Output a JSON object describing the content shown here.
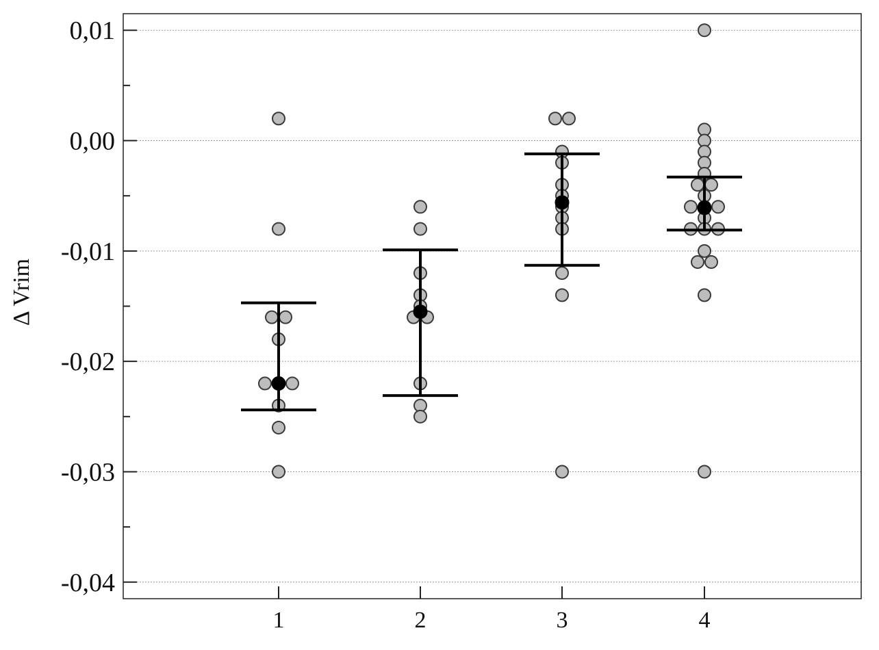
{
  "chart_data": {
    "type": "scatter",
    "title": "",
    "xlabel": "",
    "ylabel": "Δ Vrim",
    "ylim": [
      -0.0415,
      0.0115
    ],
    "grid": true,
    "y_ticks": [
      0.01,
      0.0,
      -0.01,
      -0.02,
      -0.03,
      -0.04
    ],
    "y_tick_labels": [
      "0,01",
      "0,00",
      "-0,01",
      "-0,02",
      "-0,03",
      "-0,04"
    ],
    "categories": [
      "1",
      "2",
      "3",
      "4"
    ],
    "colors": {
      "point_fill": "#bdbdbd",
      "point_stroke": "#3a3a3a",
      "mean": "#000000",
      "errorbar": "#000000",
      "grid": "#9a9a9a",
      "axis": "#222222"
    },
    "groups": [
      {
        "category": "1",
        "points": [
          0.002,
          -0.008,
          -0.016,
          -0.016,
          -0.018,
          -0.022,
          -0.022,
          -0.022,
          -0.024,
          -0.026,
          -0.03
        ],
        "mean": -0.022,
        "upper": -0.0147,
        "lower": -0.0244
      },
      {
        "category": "2",
        "points": [
          -0.006,
          -0.008,
          -0.012,
          -0.014,
          -0.015,
          -0.016,
          -0.016,
          -0.022,
          -0.024,
          -0.025
        ],
        "mean": -0.0155,
        "upper": -0.0099,
        "lower": -0.0231
      },
      {
        "category": "3",
        "points": [
          0.002,
          0.002,
          -0.001,
          -0.002,
          -0.004,
          -0.005,
          -0.006,
          -0.007,
          -0.008,
          -0.012,
          -0.014,
          -0.03
        ],
        "mean": -0.0056,
        "upper": -0.0012,
        "lower": -0.0113
      },
      {
        "category": "4",
        "points": [
          0.01,
          0.001,
          0.0,
          -0.001,
          -0.002,
          -0.003,
          -0.004,
          -0.004,
          -0.005,
          -0.006,
          -0.006,
          -0.006,
          -0.007,
          -0.008,
          -0.008,
          -0.008,
          -0.01,
          -0.011,
          -0.011,
          -0.014,
          -0.03
        ],
        "mean": -0.0061,
        "upper": -0.0033,
        "lower": -0.0081
      }
    ]
  }
}
